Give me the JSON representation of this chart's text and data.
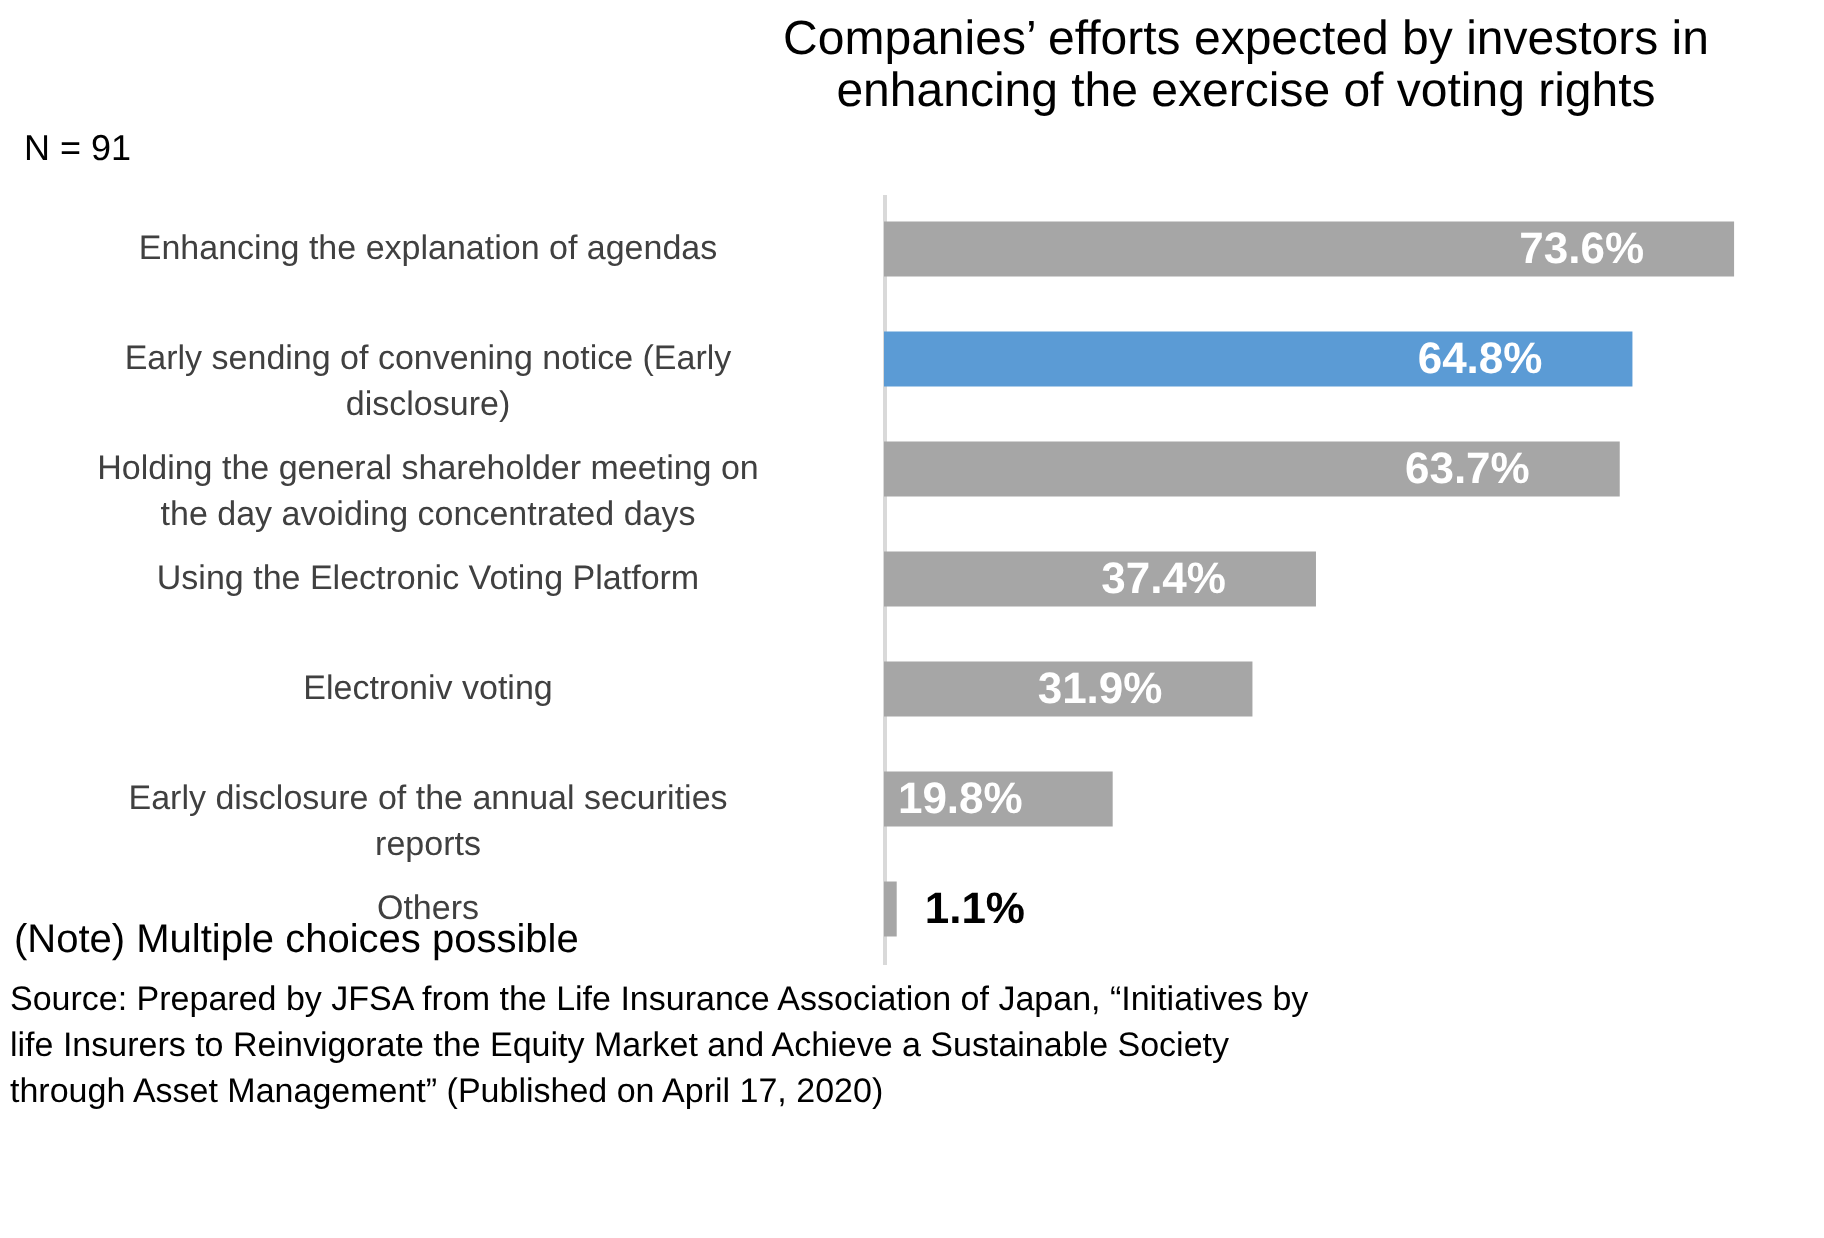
{
  "chart_data": {
    "type": "bar",
    "orientation": "horizontal",
    "title": "Companies’ efforts expected by investors in enhancing the exercise of voting rights",
    "categories": [
      "Enhancing the explanation of agendas",
      "Early sending of convening notice (Early disclosure)",
      "Holding the general shareholder meeting on the day avoiding concentrated days",
      "Using the Electronic Voting Platform",
      "Electroniv voting",
      "Early disclosure of the annual securities reports",
      "Others"
    ],
    "values": [
      73.6,
      64.8,
      63.7,
      37.4,
      31.9,
      19.8,
      1.1
    ],
    "value_labels": [
      "73.6%",
      "64.8%",
      "63.7%",
      "37.4%",
      "31.9%",
      "19.8%",
      "1.1%"
    ],
    "colors": [
      "#a6a6a6",
      "#5b9bd5",
      "#a6a6a6",
      "#a6a6a6",
      "#a6a6a6",
      "#a6a6a6",
      "#a6a6a6"
    ],
    "annotations": [
      "N = 91",
      "(Note) Multiple choices possible",
      "Source: Prepared by JFSA from the Life Insurance Association of Japan, “Initiatives by life Insurers to Reinvigorate the Equity Market and Achieve a Sustainable Society through Asset Management” (Published on April 17, 2020)"
    ],
    "grid": false
  }
}
